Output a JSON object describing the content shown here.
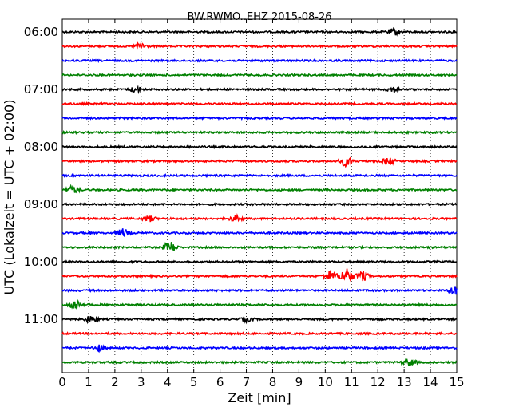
{
  "chart_data": {
    "type": "line",
    "title": "BW.RWMO..EHZ 2015-08-26",
    "xlabel": "Zeit  [min]",
    "ylabel": "UTC (Lokalzeit = UTC + 02:00)",
    "xlim": [
      0,
      15
    ],
    "xticks": [
      "0",
      "1",
      "2",
      "3",
      "4",
      "5",
      "6",
      "7",
      "8",
      "9",
      "10",
      "11",
      "12",
      "13",
      "14",
      "15"
    ],
    "yticks": [
      "06:00",
      "07:00",
      "08:00",
      "09:00",
      "10:00",
      "11:00"
    ],
    "grid": "vertical dotted",
    "trace_colors": [
      "#000000",
      "#ff0000",
      "#0000ff",
      "#008000"
    ],
    "series_start_times": [
      "06:00",
      "06:15",
      "06:30",
      "06:45",
      "07:00",
      "07:15",
      "07:30",
      "07:45",
      "08:00",
      "08:15",
      "08:30",
      "08:45",
      "09:00",
      "09:15",
      "09:30",
      "09:45",
      "10:00",
      "10:15",
      "10:30",
      "10:45",
      "11:00",
      "11:15",
      "11:30",
      "11:45"
    ],
    "events": [
      {
        "trace": 0,
        "minute": 12.6,
        "amplitude": 0.6
      },
      {
        "trace": 1,
        "minute": 3.0,
        "amplitude": 0.6
      },
      {
        "trace": 4,
        "minute": 2.8,
        "amplitude": 0.5
      },
      {
        "trace": 4,
        "minute": 12.6,
        "amplitude": 0.5
      },
      {
        "trace": 9,
        "minute": 10.8,
        "amplitude": 0.9
      },
      {
        "trace": 9,
        "minute": 12.4,
        "amplitude": 0.6
      },
      {
        "trace": 11,
        "minute": 0.4,
        "amplitude": 0.7
      },
      {
        "trace": 13,
        "minute": 3.3,
        "amplitude": 0.5
      },
      {
        "trace": 13,
        "minute": 6.6,
        "amplitude": 0.5
      },
      {
        "trace": 14,
        "minute": 2.3,
        "amplitude": 0.7
      },
      {
        "trace": 15,
        "minute": 4.1,
        "amplitude": 1.1
      },
      {
        "trace": 17,
        "minute": 10.2,
        "amplitude": 1.0
      },
      {
        "trace": 17,
        "minute": 10.8,
        "amplitude": 1.4
      },
      {
        "trace": 17,
        "minute": 11.4,
        "amplitude": 0.9
      },
      {
        "trace": 18,
        "minute": 14.95,
        "amplitude": 1.0
      },
      {
        "trace": 19,
        "minute": 0.5,
        "amplitude": 1.0
      },
      {
        "trace": 20,
        "minute": 1.1,
        "amplitude": 0.6
      },
      {
        "trace": 20,
        "minute": 7.0,
        "amplitude": 0.4
      },
      {
        "trace": 22,
        "minute": 1.4,
        "amplitude": 0.5
      },
      {
        "trace": 23,
        "minute": 13.2,
        "amplitude": 0.7
      }
    ]
  }
}
